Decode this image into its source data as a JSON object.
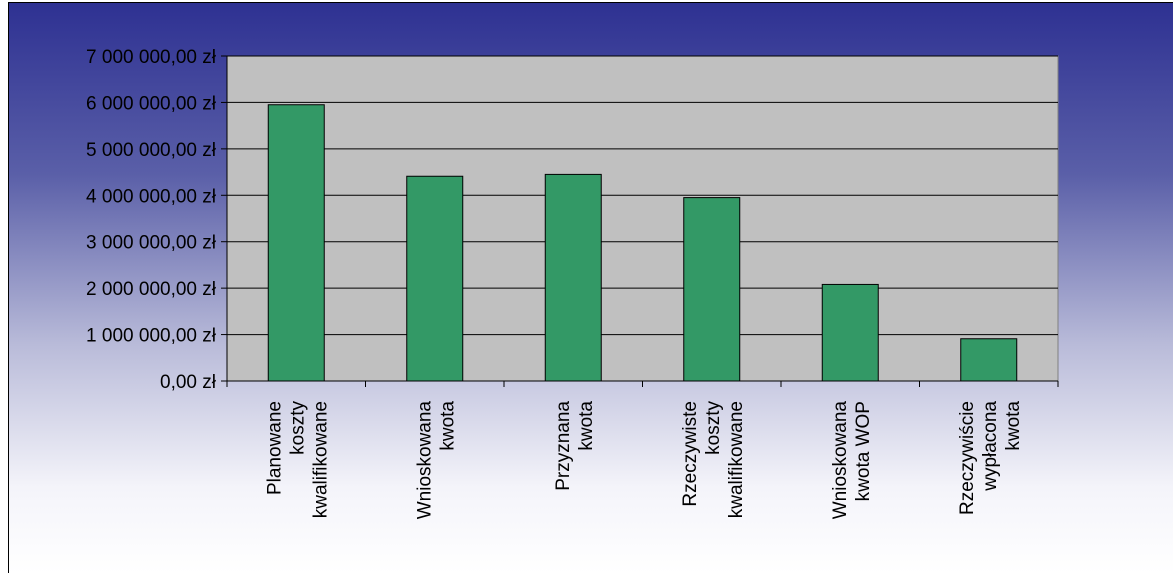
{
  "chart_data": {
    "type": "bar",
    "categories": [
      [
        "Planowane",
        "koszty",
        "kwalifikowane"
      ],
      [
        "Wnioskowana",
        "kwota"
      ],
      [
        "Przyznana",
        "kwota"
      ],
      [
        "Rzeczywiste",
        "koszty",
        "kwalifikowane"
      ],
      [
        "Wnioskowana",
        "kwota WOP"
      ],
      [
        "Rzeczywiście",
        "wypłacona",
        "kwota"
      ]
    ],
    "values": [
      5950000,
      4410000,
      4450000,
      3950000,
      2080000,
      910000
    ],
    "ylim": [
      0,
      7000000
    ],
    "yticks": [
      0,
      1000000,
      2000000,
      3000000,
      4000000,
      5000000,
      6000000,
      7000000
    ],
    "ytick_labels": [
      "0,00 zł",
      "1 000 000,00 zł",
      "2 000 000,00 zł",
      "3 000 000,00 zł",
      "4 000 000,00 zł",
      "5 000 000,00 zł",
      "6 000 000,00 zł",
      "7 000 000,00 zł"
    ],
    "grid": true,
    "legend": "none",
    "colors": {
      "bar": "#339966",
      "plot_background": "#c0c0c0",
      "gridline": "#000000"
    }
  }
}
